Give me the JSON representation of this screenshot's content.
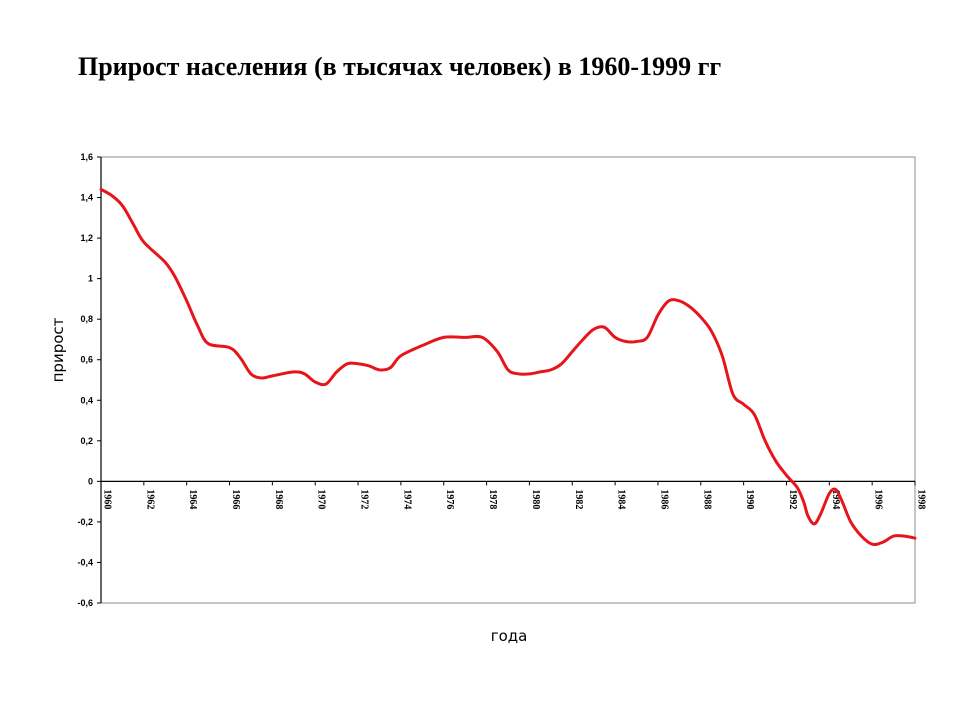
{
  "title": "Прирост населения (в тысячах человек) в 1960-1999 гг",
  "chart_data": {
    "type": "line",
    "title": "Прирост населения (в тысячах человек) в 1960-1999 гг",
    "xlabel": "года",
    "ylabel": "прирост",
    "xlim": [
      1960,
      1998
    ],
    "ylim": [
      -0.6,
      1.6
    ],
    "y_ticks": [
      "-0,6",
      "-0,4",
      "-0,2",
      "0",
      "0,2",
      "0,4",
      "0,6",
      "0,8",
      "1",
      "1,2",
      "1,4",
      "1,6"
    ],
    "y_tick_values": [
      -0.6,
      -0.4,
      -0.2,
      0,
      0.2,
      0.4,
      0.6,
      0.8,
      1.0,
      1.2,
      1.4,
      1.6
    ],
    "x_ticks": [
      "1960",
      "1962",
      "1964",
      "1966",
      "1968",
      "1970",
      "1972",
      "1974",
      "1976",
      "1978",
      "1980",
      "1982",
      "1984",
      "1986",
      "1988",
      "1990",
      "1992",
      "1994",
      "1996",
      "1998"
    ],
    "x_tick_values": [
      1960,
      1962,
      1964,
      1966,
      1968,
      1970,
      1972,
      1974,
      1976,
      1978,
      1980,
      1982,
      1984,
      1986,
      1988,
      1990,
      1992,
      1994,
      1996,
      1998
    ],
    "grid": false,
    "line_color": "#e8141b",
    "series": [
      {
        "x": [
          1960,
          1960.5,
          1961,
          1961.5,
          1962,
          1963,
          1963.5,
          1964,
          1964.5,
          1965,
          1966,
          1966.5,
          1967,
          1967.5,
          1968,
          1969,
          1969.5,
          1970,
          1970.5,
          1971,
          1971.5,
          1972,
          1972.5,
          1973,
          1973.5,
          1974,
          1975,
          1976,
          1977,
          1977.8,
          1978.5,
          1979,
          1979.5,
          1980,
          1980.5,
          1981,
          1981.5,
          1982,
          1982.5,
          1983,
          1983.5,
          1984,
          1984.5,
          1985,
          1985.5,
          1986,
          1986.5,
          1987,
          1987.5,
          1988,
          1988.5,
          1989,
          1989.5,
          1990,
          1990.5,
          1991,
          1991.5,
          1992,
          1992.5,
          1992.8,
          1993,
          1993.3,
          1993.6,
          1994,
          1994.3,
          1994.6,
          1995,
          1995.5,
          1996,
          1996.5,
          1997,
          1997.5,
          1998
        ],
        "values": [
          1.44,
          1.41,
          1.36,
          1.27,
          1.18,
          1.08,
          1.0,
          0.89,
          0.77,
          0.68,
          0.66,
          0.61,
          0.53,
          0.51,
          0.52,
          0.54,
          0.53,
          0.49,
          0.48,
          0.54,
          0.58,
          0.58,
          0.57,
          0.55,
          0.56,
          0.62,
          0.67,
          0.71,
          0.71,
          0.71,
          0.64,
          0.55,
          0.53,
          0.53,
          0.54,
          0.55,
          0.58,
          0.64,
          0.7,
          0.75,
          0.76,
          0.71,
          0.69,
          0.69,
          0.71,
          0.82,
          0.89,
          0.89,
          0.86,
          0.81,
          0.74,
          0.62,
          0.43,
          0.38,
          0.33,
          0.2,
          0.1,
          0.03,
          -0.03,
          -0.1,
          -0.17,
          -0.21,
          -0.16,
          -0.06,
          -0.04,
          -0.1,
          -0.2,
          -0.27,
          -0.31,
          -0.3,
          -0.27,
          -0.27,
          -0.28
        ]
      }
    ]
  }
}
